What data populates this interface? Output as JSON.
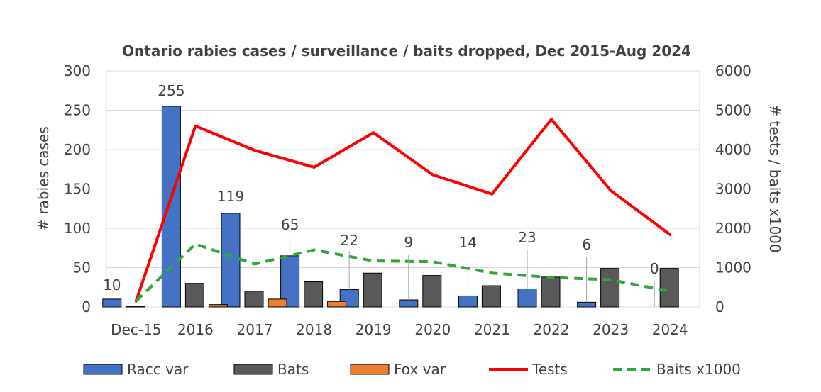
{
  "chart_data": {
    "type": "bar",
    "title": "Ontario rabies cases / surveillance / baits dropped, Dec 2015-Aug 2024",
    "ylabel": "# rabies cases",
    "y2label": "# tests / baits x1000",
    "categories": [
      "Dec-15",
      "2016",
      "2017",
      "2018",
      "2019",
      "2020",
      "2021",
      "2022",
      "2023",
      "2024"
    ],
    "ylim": [
      0,
      300
    ],
    "yticks": [
      0,
      50,
      100,
      150,
      200,
      250,
      300
    ],
    "y2lim": [
      0,
      6000
    ],
    "y2ticks": [
      0,
      1000,
      2000,
      3000,
      4000,
      5000,
      6000
    ],
    "grid": true,
    "legend_position": "bottom",
    "bar_series": [
      {
        "name": "Racc var",
        "color": "#4472C4",
        "values": [
          10,
          255,
          119,
          65,
          22,
          9,
          14,
          23,
          6,
          0
        ]
      },
      {
        "name": "Bats",
        "color": "#595959",
        "values": [
          1,
          30,
          20,
          32,
          43,
          40,
          27,
          38,
          49,
          49
        ]
      },
      {
        "name": "Fox var",
        "color": "#ED7D31",
        "values": [
          0,
          3,
          10,
          7,
          0,
          0,
          0,
          0,
          0,
          0
        ]
      }
    ],
    "line_series": [
      {
        "name": "Tests",
        "color": "#FF0000",
        "dashed": false,
        "axis": "right",
        "values": [
          150,
          4600,
          3980,
          3550,
          4430,
          3360,
          2870,
          4770,
          2960,
          1840
        ]
      },
      {
        "name": "Baits x1000",
        "color": "#2EA83A",
        "dashed": true,
        "axis": "right",
        "values": [
          150,
          1600,
          1090,
          1450,
          1170,
          1150,
          860,
          750,
          690,
          400
        ]
      }
    ],
    "data_labels": [
      "10",
      "255",
      "119",
      "65",
      "22",
      "9",
      "14",
      "23",
      "6",
      "0"
    ]
  }
}
